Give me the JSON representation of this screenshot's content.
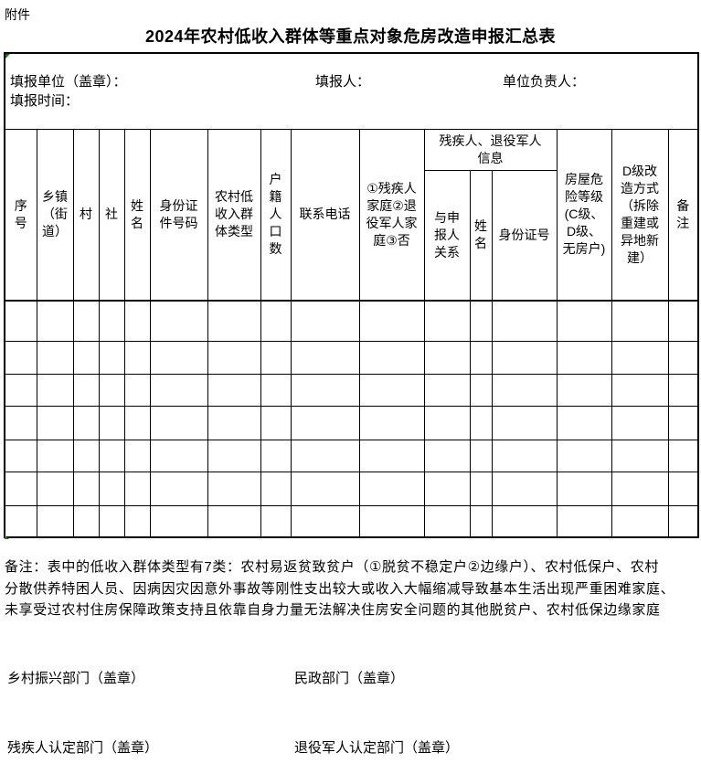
{
  "page": {
    "attachment_label": "附件",
    "title": "2024年农村低收入群体等重点对象危房改造申报汇总表"
  },
  "colors": {
    "background": "#ffffff",
    "text": "#000000",
    "table_border": "#000000",
    "excel_marker_green": "#0e7e0e"
  },
  "info_row": {
    "unit_label": "填报单位（盖章）：",
    "reporter_label": "填报人：",
    "head_label": "单位负责人：",
    "date_label": "填报时间："
  },
  "table": {
    "empty_row_count": 7,
    "headers": {
      "seq": "序\n号",
      "township": "乡镇\n（街\n道）",
      "village": "村",
      "she": "社",
      "name": "姓\n名",
      "id_number": "身份证\n件号码",
      "group_type": "农村低\n收入群\n体类型",
      "household_pop": "户\n籍\n人\n口\n数",
      "phone": "联系电话",
      "family_type": "①残疾人\n家庭②退\n役军人家\n庭③否",
      "info_group": "残疾人、退役军人\n信息",
      "relation": "与申\n报人\n关系",
      "member_name": "姓\n名",
      "member_id": "身份证号",
      "danger_level": "房屋危\n险等级\n(C级、\nD级、\n无房户)",
      "d_mode": "D级改\n造方式\n（拆除\n重建或\n异地新\n建）",
      "remark": "备\n注"
    }
  },
  "note": {
    "lines": [
      "备注：表中的低收入群体类型有7类：农村易返贫致贫户（①脱贫不稳定户②边缘户）、农村低保户、农村",
      "分散供养特困人员、因病因灾因意外事故等刚性支出较大或收入大幅缩减导致基本生活出现严重困难家庭、",
      "未享受过农村住房保障政策支持且依靠自身力量无法解决住房安全问题的其他脱贫户、农村低保边缘家庭"
    ]
  },
  "stamps": {
    "rural_revitalization": "乡村振兴部门（盖章）",
    "civil_affairs": "民政部门（盖章）",
    "disabled_certification": "残疾人认定部门（盖章）",
    "veterans_certification": "退役军人认定部门（盖章）"
  }
}
